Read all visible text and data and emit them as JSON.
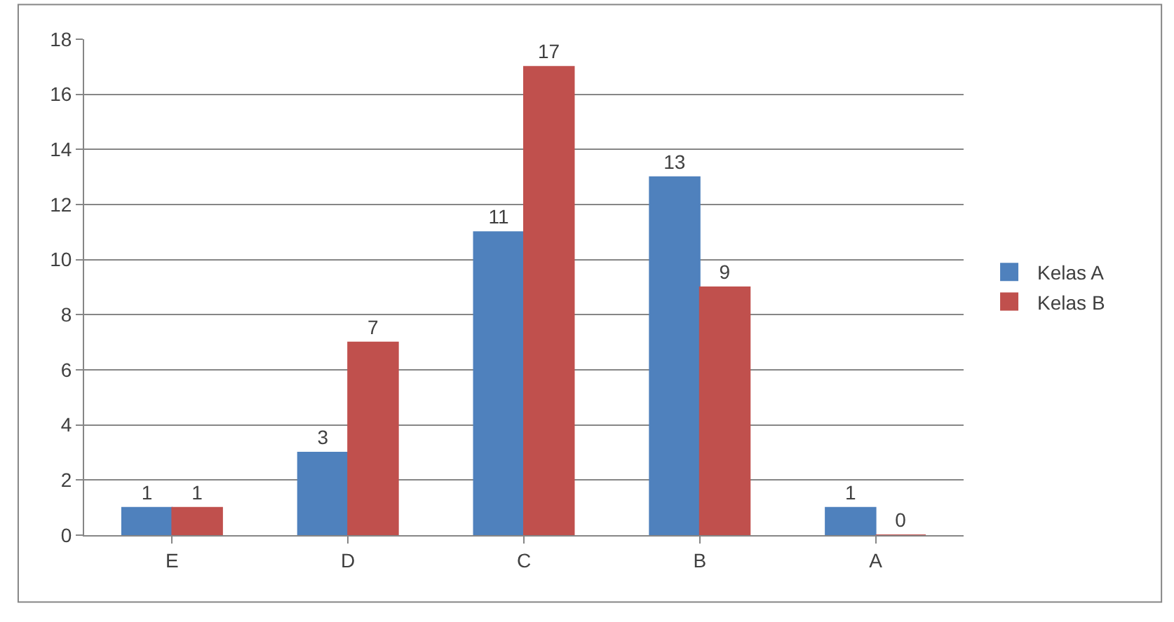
{
  "chart_data": {
    "type": "bar",
    "categories": [
      "E",
      "D",
      "C",
      "B",
      "A"
    ],
    "series": [
      {
        "name": "Kelas A",
        "color": "#4f81bd",
        "values": [
          1,
          3,
          11,
          13,
          1
        ]
      },
      {
        "name": "Kelas B",
        "color": "#c0504d",
        "values": [
          1,
          7,
          17,
          9,
          0
        ]
      }
    ],
    "ylim": [
      0,
      18
    ],
    "yticks": [
      0,
      2,
      4,
      6,
      8,
      10,
      12,
      14,
      16,
      18
    ],
    "grid": "y",
    "legend": "right",
    "data_labels": true
  }
}
